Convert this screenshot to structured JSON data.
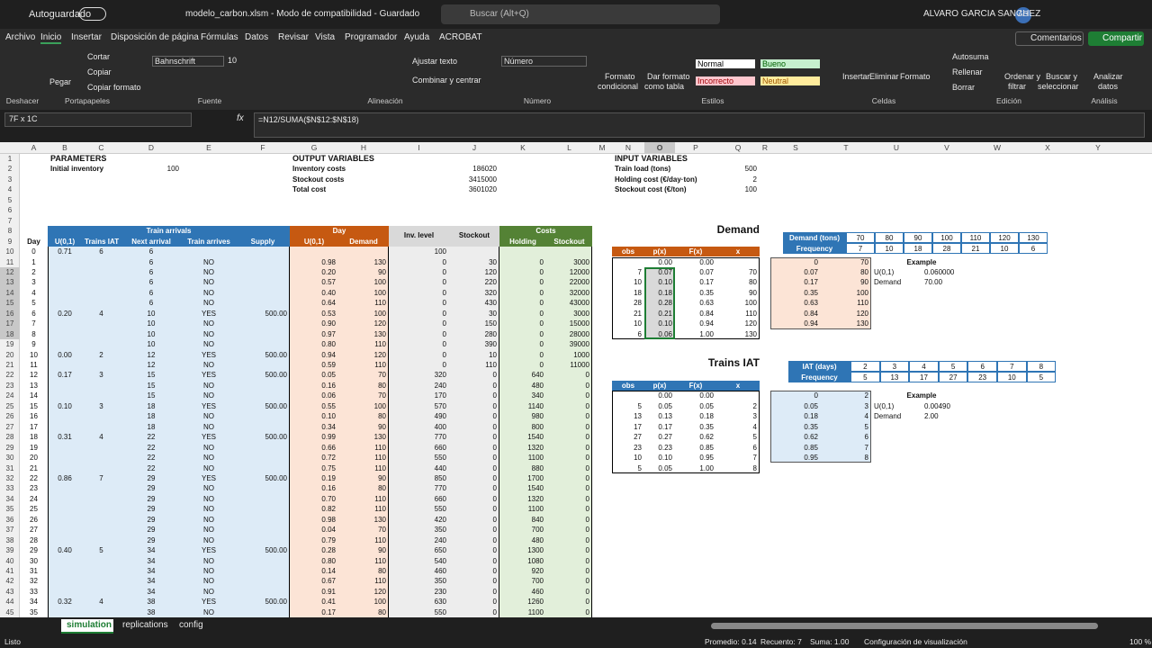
{
  "titlebar": {
    "autosave": "Autoguardado",
    "file": "modelo_carbon.xlsm  -  Modo de compatibilidad  -  Guardado",
    "search": "Buscar (Alt+Q)",
    "user": "ALVARO GARCIA SANCHEZ",
    "initials": "AG"
  },
  "menu": {
    "tabs": [
      "Archivo",
      "Inicio",
      "Insertar",
      "Disposición de página",
      "Fórmulas",
      "Datos",
      "Revisar",
      "Vista",
      "Programador",
      "Ayuda",
      "ACROBAT"
    ],
    "comments": "Comentarios",
    "share": "Compartir"
  },
  "ribbon": {
    "commands": [
      "Pegar",
      "Cortar",
      "Copiar",
      "Copiar formato",
      "Bahnschrift",
      "10",
      "Ajustar texto",
      "Combinar y centrar",
      "Número",
      "Formato",
      "condicional",
      "Dar formato",
      "como tabla",
      "Normal",
      "Bueno",
      "Incorrecto",
      "Neutral",
      "Insertar",
      "Eliminar",
      "Formato",
      "Autosuma",
      "Rellenar",
      "Borrar",
      "Ordenar y",
      "filtrar",
      "Buscar y",
      "seleccionar",
      "Analizar",
      "datos"
    ],
    "groups": [
      "Deshacer",
      "Portapapeles",
      "Fuente",
      "Alineación",
      "Número",
      "Estilos",
      "Celdas",
      "Edición",
      "Análisis"
    ]
  },
  "formula_bar": {
    "name_box": "7F x 1C",
    "fx": "fx",
    "formula": "=N12/SUMA($N$12:$N$18)"
  },
  "columns": [
    "A",
    "B",
    "C",
    "D",
    "E",
    "F",
    "G",
    "H",
    "I",
    "J",
    "K",
    "L",
    "M",
    "N",
    "O",
    "P",
    "Q",
    "R",
    "S",
    "T",
    "U",
    "V",
    "W",
    "X",
    "Y"
  ],
  "rows": [
    1,
    2,
    3,
    4,
    5,
    6,
    7,
    8,
    9,
    10,
    11,
    12,
    13,
    14,
    15,
    16,
    17,
    18,
    19,
    20,
    21,
    22,
    23,
    24,
    25,
    26,
    27,
    28,
    29,
    30,
    31,
    32,
    33,
    34,
    35,
    36,
    37,
    38,
    39,
    40,
    41,
    42,
    43,
    44,
    45
  ],
  "parameters": {
    "title": "PARAMETERS",
    "items": [
      [
        "Initial inventory",
        "100"
      ]
    ]
  },
  "outputs": {
    "title": "OUTPUT VARIABLES",
    "items": [
      [
        "Inventory costs",
        "186020"
      ],
      [
        "Stockout costs",
        "3415000"
      ],
      [
        "Total cost",
        "3601020"
      ]
    ]
  },
  "inputs": {
    "title": "INPUT VARIABLES",
    "items": [
      [
        "Train load (tons)",
        "500"
      ],
      [
        "Holding cost (€/day·ton)",
        "2"
      ],
      [
        "Stockout cost (€/ton)",
        "100"
      ]
    ]
  },
  "simulation": {
    "groups": [
      "Train arrivals",
      "Day",
      "Inv. level",
      "Stockout",
      "Costs"
    ],
    "headers": [
      "Day",
      "U(0,1)",
      "Trains IAT",
      "Next arrival",
      "Train arrives",
      "Supply",
      "U(0,1)",
      "Demand",
      "Holding",
      "Stockout"
    ],
    "rows": [
      [
        "0",
        "0.71",
        "6",
        "6",
        null,
        null,
        null,
        null,
        "100",
        null,
        null,
        null
      ],
      [
        "1",
        null,
        null,
        "6",
        "NO",
        null,
        "0.98",
        "130",
        "0",
        "30",
        "0",
        "3000"
      ],
      [
        "2",
        null,
        null,
        "6",
        "NO",
        null,
        "0.20",
        "90",
        "0",
        "120",
        "0",
        "12000"
      ],
      [
        "3",
        null,
        null,
        "6",
        "NO",
        null,
        "0.57",
        "100",
        "0",
        "220",
        "0",
        "22000"
      ],
      [
        "4",
        null,
        null,
        "6",
        "NO",
        null,
        "0.40",
        "100",
        "0",
        "320",
        "0",
        "32000"
      ],
      [
        "5",
        null,
        null,
        "6",
        "NO",
        null,
        "0.64",
        "110",
        "0",
        "430",
        "0",
        "43000"
      ],
      [
        "6",
        "0.20",
        "4",
        "10",
        "YES",
        "500.00",
        "0.53",
        "100",
        "0",
        "30",
        "0",
        "3000"
      ],
      [
        "7",
        null,
        null,
        "10",
        "NO",
        null,
        "0.90",
        "120",
        "0",
        "150",
        "0",
        "15000"
      ],
      [
        "8",
        null,
        null,
        "10",
        "NO",
        null,
        "0.97",
        "130",
        "0",
        "280",
        "0",
        "28000"
      ],
      [
        "9",
        null,
        null,
        "10",
        "NO",
        null,
        "0.80",
        "110",
        "0",
        "390",
        "0",
        "39000"
      ],
      [
        "10",
        "0.00",
        "2",
        "12",
        "YES",
        "500.00",
        "0.94",
        "120",
        "0",
        "10",
        "0",
        "1000"
      ],
      [
        "11",
        null,
        null,
        "12",
        "NO",
        null,
        "0.59",
        "110",
        "0",
        "110",
        "0",
        "11000"
      ],
      [
        "12",
        "0.17",
        "3",
        "15",
        "YES",
        "500.00",
        "0.05",
        "70",
        "320",
        "0",
        "640",
        "0"
      ],
      [
        "13",
        null,
        null,
        "15",
        "NO",
        null,
        "0.16",
        "80",
        "240",
        "0",
        "480",
        "0"
      ],
      [
        "14",
        null,
        null,
        "15",
        "NO",
        null,
        "0.06",
        "70",
        "170",
        "0",
        "340",
        "0"
      ],
      [
        "15",
        "0.10",
        "3",
        "18",
        "YES",
        "500.00",
        "0.55",
        "100",
        "570",
        "0",
        "1140",
        "0"
      ],
      [
        "16",
        null,
        null,
        "18",
        "NO",
        null,
        "0.10",
        "80",
        "490",
        "0",
        "980",
        "0"
      ],
      [
        "17",
        null,
        null,
        "18",
        "NO",
        null,
        "0.34",
        "90",
        "400",
        "0",
        "800",
        "0"
      ],
      [
        "18",
        "0.31",
        "4",
        "22",
        "YES",
        "500.00",
        "0.99",
        "130",
        "770",
        "0",
        "1540",
        "0"
      ],
      [
        "19",
        null,
        null,
        "22",
        "NO",
        null,
        "0.66",
        "110",
        "660",
        "0",
        "1320",
        "0"
      ],
      [
        "20",
        null,
        null,
        "22",
        "NO",
        null,
        "0.72",
        "110",
        "550",
        "0",
        "1100",
        "0"
      ],
      [
        "21",
        null,
        null,
        "22",
        "NO",
        null,
        "0.75",
        "110",
        "440",
        "0",
        "880",
        "0"
      ],
      [
        "22",
        "0.86",
        "7",
        "29",
        "YES",
        "500.00",
        "0.19",
        "90",
        "850",
        "0",
        "1700",
        "0"
      ],
      [
        "23",
        null,
        null,
        "29",
        "NO",
        null,
        "0.16",
        "80",
        "770",
        "0",
        "1540",
        "0"
      ],
      [
        "24",
        null,
        null,
        "29",
        "NO",
        null,
        "0.70",
        "110",
        "660",
        "0",
        "1320",
        "0"
      ],
      [
        "25",
        null,
        null,
        "29",
        "NO",
        null,
        "0.82",
        "110",
        "550",
        "0",
        "1100",
        "0"
      ],
      [
        "26",
        null,
        null,
        "29",
        "NO",
        null,
        "0.98",
        "130",
        "420",
        "0",
        "840",
        "0"
      ],
      [
        "27",
        null,
        null,
        "29",
        "NO",
        null,
        "0.04",
        "70",
        "350",
        "0",
        "700",
        "0"
      ],
      [
        "28",
        null,
        null,
        "29",
        "NO",
        null,
        "0.79",
        "110",
        "240",
        "0",
        "480",
        "0"
      ],
      [
        "29",
        "0.40",
        "5",
        "34",
        "YES",
        "500.00",
        "0.28",
        "90",
        "650",
        "0",
        "1300",
        "0"
      ],
      [
        "30",
        null,
        null,
        "34",
        "NO",
        null,
        "0.80",
        "110",
        "540",
        "0",
        "1080",
        "0"
      ],
      [
        "31",
        null,
        null,
        "34",
        "NO",
        null,
        "0.14",
        "80",
        "460",
        "0",
        "920",
        "0"
      ],
      [
        "32",
        null,
        null,
        "34",
        "NO",
        null,
        "0.67",
        "110",
        "350",
        "0",
        "700",
        "0"
      ],
      [
        "33",
        null,
        null,
        "34",
        "NO",
        null,
        "0.91",
        "120",
        "230",
        "0",
        "460",
        "0"
      ],
      [
        "34",
        "0.32",
        "4",
        "38",
        "YES",
        "500.00",
        "0.41",
        "100",
        "630",
        "0",
        "1260",
        "0"
      ],
      [
        "35",
        null,
        null,
        "38",
        "NO",
        null,
        "0.17",
        "80",
        "550",
        "0",
        "1100",
        "0"
      ]
    ]
  },
  "demand": {
    "title": "Demand",
    "freq_headers": [
      "Demand (tons)",
      "Frequency"
    ],
    "values": [
      "70",
      "80",
      "90",
      "100",
      "110",
      "120",
      "130"
    ],
    "frequency": [
      "7",
      "10",
      "18",
      "28",
      "21",
      "10",
      "6"
    ],
    "headers": [
      "obs",
      "p(x)",
      "F(x)",
      "x"
    ],
    "table": [
      [
        null,
        "0.00",
        "0.00",
        null
      ],
      [
        "7",
        "0.07",
        "0.07",
        "70"
      ],
      [
        "10",
        "0.10",
        "0.17",
        "80"
      ],
      [
        "18",
        "0.18",
        "0.35",
        "90"
      ],
      [
        "28",
        "0.28",
        "0.63",
        "100"
      ],
      [
        "21",
        "0.21",
        "0.84",
        "110"
      ],
      [
        "10",
        "0.10",
        "0.94",
        "120"
      ],
      [
        "6",
        "0.06",
        "1.00",
        "130"
      ]
    ],
    "lookup": [
      [
        "0",
        "70"
      ],
      [
        "0.07",
        "80"
      ],
      [
        "0.17",
        "90"
      ],
      [
        "0.35",
        "100"
      ],
      [
        "0.63",
        "110"
      ],
      [
        "0.84",
        "120"
      ],
      [
        "0.94",
        "130"
      ]
    ],
    "example": {
      "title": "Example",
      "rows": [
        [
          "U(0,1)",
          "0.060000"
        ],
        [
          "Demand",
          "70.00"
        ]
      ]
    }
  },
  "trains": {
    "title": "Trains IAT",
    "freq_headers": [
      "IAT (days)",
      "Frequency"
    ],
    "values": [
      "2",
      "3",
      "4",
      "5",
      "6",
      "7",
      "8"
    ],
    "frequency": [
      "5",
      "13",
      "17",
      "27",
      "23",
      "10",
      "5"
    ],
    "headers": [
      "obs",
      "p(x)",
      "F(x)",
      "x"
    ],
    "table": [
      [
        null,
        "0.00",
        "0.00",
        null
      ],
      [
        "5",
        "0.05",
        "0.05",
        "2"
      ],
      [
        "13",
        "0.13",
        "0.18",
        "3"
      ],
      [
        "17",
        "0.17",
        "0.35",
        "4"
      ],
      [
        "27",
        "0.27",
        "0.62",
        "5"
      ],
      [
        "23",
        "0.23",
        "0.85",
        "6"
      ],
      [
        "10",
        "0.10",
        "0.95",
        "7"
      ],
      [
        "5",
        "0.05",
        "1.00",
        "8"
      ]
    ],
    "lookup": [
      [
        "0",
        "2"
      ],
      [
        "0.05",
        "3"
      ],
      [
        "0.18",
        "4"
      ],
      [
        "0.35",
        "5"
      ],
      [
        "0.62",
        "6"
      ],
      [
        "0.85",
        "7"
      ],
      [
        "0.95",
        "8"
      ]
    ],
    "example": {
      "title": "Example",
      "rows": [
        [
          "U(0,1)",
          "0.00490"
        ],
        [
          "Demand",
          "2.00"
        ]
      ]
    }
  },
  "sheet_tabs": [
    "simulation",
    "replications",
    "config"
  ],
  "status": {
    "ready": "Listo",
    "average": "Promedio: 0.14",
    "count": "Recuento: 7",
    "sum": "Suma: 1.00",
    "display": "Configuración de visualización",
    "zoom": "100 %"
  }
}
